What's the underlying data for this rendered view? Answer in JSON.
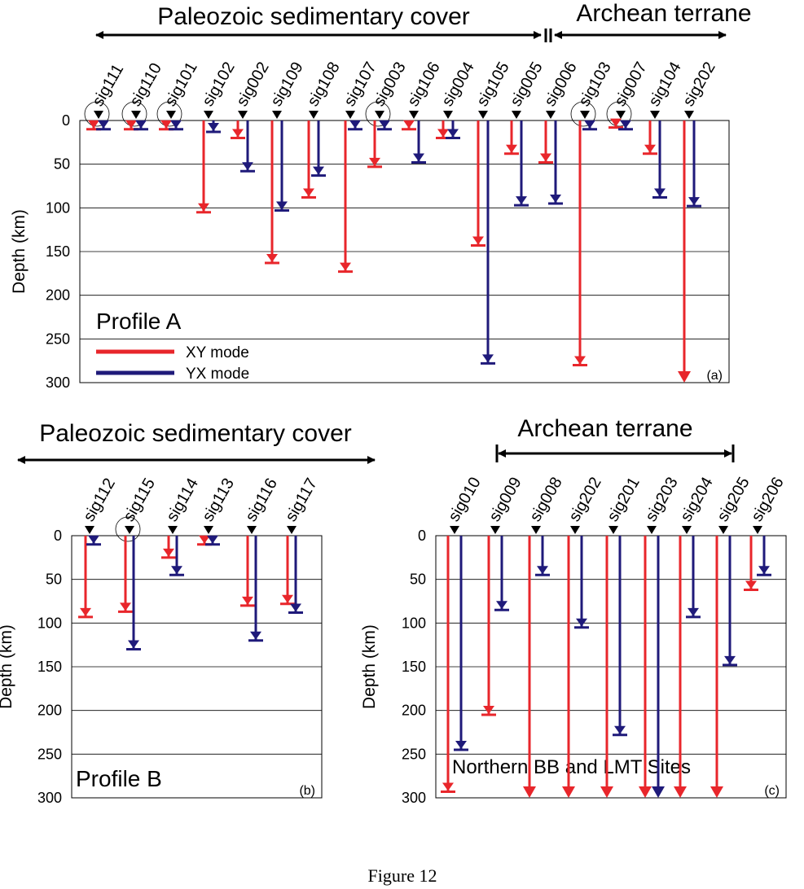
{
  "caption": "Figure 12",
  "legend": {
    "xy": "XY mode",
    "yx": "YX mode"
  },
  "colors": {
    "xy": "#e8262b",
    "yx": "#1f1a7a",
    "axis": "#000000",
    "grid": "#000000"
  },
  "chart_data": [
    {
      "type": "bar",
      "panel_label": "(a)",
      "title": "Profile A",
      "ylabel": "Depth (km)",
      "ylim": [
        0,
        300
      ],
      "yticks": [
        0,
        50,
        100,
        150,
        200,
        250,
        300
      ],
      "grid": true,
      "legend_position": "bottom-left",
      "regions": [
        {
          "label": "Paleozoic sedimentary cover"
        },
        {
          "label": "Archean terrane"
        }
      ],
      "categories": [
        "sig111",
        "sig110",
        "sig101",
        "sig102",
        "sig002",
        "sig109",
        "sig108",
        "sig107",
        "sig003",
        "sig106",
        "sig004",
        "sig105",
        "sig005",
        "sig006",
        "sig103",
        "sig007",
        "sig104",
        "sig202"
      ],
      "circled": [
        "sig111",
        "sig110",
        "sig101",
        "sig003",
        "sig103",
        "sig007"
      ],
      "series": [
        {
          "name": "XY mode",
          "values": [
            10,
            10,
            10,
            105,
            20,
            163,
            88,
            173,
            53,
            10,
            20,
            143,
            38,
            48,
            280,
            8,
            38,
            300
          ],
          "open_ended": [
            false,
            false,
            false,
            false,
            false,
            false,
            false,
            false,
            false,
            false,
            false,
            false,
            false,
            false,
            false,
            false,
            false,
            true
          ]
        },
        {
          "name": "YX mode",
          "values": [
            10,
            10,
            10,
            13,
            58,
            103,
            63,
            10,
            10,
            48,
            20,
            278,
            97,
            95,
            10,
            10,
            88,
            98
          ],
          "open_ended": [
            false,
            false,
            false,
            false,
            false,
            false,
            false,
            false,
            false,
            false,
            false,
            false,
            false,
            false,
            false,
            false,
            false,
            false
          ]
        }
      ]
    },
    {
      "type": "bar",
      "panel_label": "(b)",
      "title": "Profile B",
      "ylabel": "Depth (km)",
      "ylim": [
        0,
        300
      ],
      "yticks": [
        0,
        50,
        100,
        150,
        200,
        250,
        300
      ],
      "grid": true,
      "regions": [
        {
          "label": "Paleozoic sedimentary cover"
        }
      ],
      "categories": [
        "sig112",
        "sig115",
        "sig114",
        "sig113",
        "sig116",
        "sig117"
      ],
      "circled": [
        "sig115"
      ],
      "series": [
        {
          "name": "XY mode",
          "values": [
            93,
            87,
            25,
            10,
            80,
            78
          ],
          "open_ended": [
            false,
            false,
            false,
            false,
            false,
            false
          ]
        },
        {
          "name": "YX mode",
          "values": [
            10,
            130,
            45,
            10,
            120,
            88
          ],
          "open_ended": [
            false,
            false,
            false,
            false,
            false,
            false
          ]
        }
      ]
    },
    {
      "type": "bar",
      "panel_label": "(c)",
      "title": "Northern BB and LMT Sites",
      "ylabel": "Depth (km)",
      "ylim": [
        0,
        300
      ],
      "yticks": [
        0,
        50,
        100,
        150,
        200,
        250,
        300
      ],
      "grid": true,
      "regions": [
        {
          "label": "Archean terrane"
        }
      ],
      "categories": [
        "sig010",
        "sig009",
        "sig008",
        "sig202",
        "sig201",
        "sig203",
        "sig204",
        "sig205",
        "sig206"
      ],
      "circled": [],
      "series": [
        {
          "name": "XY mode",
          "values": [
            293,
            205,
            300,
            300,
            300,
            300,
            300,
            300,
            62
          ],
          "open_ended": [
            false,
            false,
            true,
            true,
            true,
            true,
            true,
            true,
            false
          ]
        },
        {
          "name": "YX mode",
          "values": [
            245,
            85,
            45,
            105,
            228,
            300,
            93,
            148,
            45
          ],
          "open_ended": [
            false,
            false,
            false,
            false,
            false,
            true,
            false,
            false,
            false
          ]
        }
      ]
    }
  ]
}
